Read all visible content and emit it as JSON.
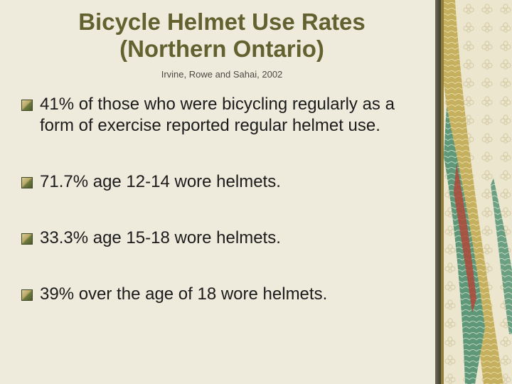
{
  "title": {
    "line1": "Bicycle Helmet Use Rates",
    "line2": "(Northern Ontario)"
  },
  "citation": "Irvine, Rowe and Sahai, 2002",
  "bullets": [
    {
      "text": "41% of those who were bicycling regularly as a form of exercise reported regular helmet use."
    },
    {
      "text": "71.7% age 12-14 wore helmets."
    },
    {
      "text": "33.3% age 15-18 wore helmets."
    },
    {
      "text": "39% over the age of 18 wore helmets."
    }
  ],
  "colors": {
    "background": "#efebdc",
    "title": "#62612f",
    "body_text": "#1b1b1b",
    "accent_green": "#4f8a6e",
    "accent_gold": "#b9a34f",
    "accent_red": "#b0483a"
  },
  "icons": {
    "bullet": "gradient-square-bullet-icon"
  }
}
